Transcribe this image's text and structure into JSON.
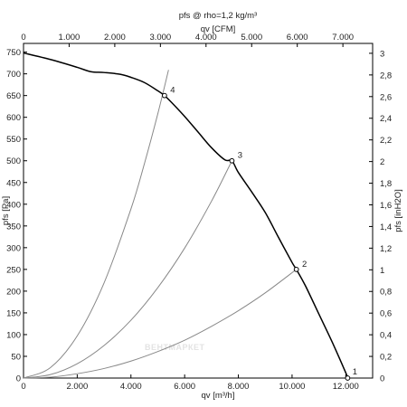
{
  "chart_data": {
    "type": "line",
    "title": "pfs @ rho=1,2 kg/m³",
    "top_axis_label": "qv [CFM]",
    "xlabel": "qv [m³/h]",
    "ylabel": "pfs [Pa]",
    "right_axis_label": "pfs [inH2O]",
    "watermark": "ВЕНТМАРКЕТ",
    "grid": false,
    "xlim": [
      0,
      13000
    ],
    "ylim": [
      0,
      770
    ],
    "x_ticks": [
      0,
      2000,
      4000,
      6000,
      8000,
      10000,
      12000
    ],
    "x_tick_labels": [
      "0",
      "2.000",
      "4.000",
      "6.000",
      "8.000",
      "10.000",
      "12.000"
    ],
    "y_ticks": [
      0,
      50,
      100,
      150,
      200,
      250,
      300,
      350,
      400,
      450,
      500,
      550,
      600,
      650,
      700,
      750
    ],
    "y_tick_labels": [
      "0",
      "50",
      "100",
      "150",
      "200",
      "250",
      "300",
      "350",
      "400",
      "450",
      "500",
      "550",
      "600",
      "650",
      "700",
      "750"
    ],
    "top_ticks_cfm": [
      0,
      1000,
      2000,
      3000,
      4000,
      5000,
      6000,
      7000
    ],
    "top_tick_labels": [
      "0",
      "1.000",
      "2.000",
      "3.000",
      "4.000",
      "5.000",
      "6.000",
      "7.000"
    ],
    "right_ticks_inh2o": [
      0,
      0.2,
      0.4,
      0.6,
      0.8,
      1.0,
      1.2,
      1.4,
      1.6,
      1.8,
      2.0,
      2.2,
      2.4,
      2.6,
      2.8,
      3.0
    ],
    "right_tick_labels": [
      "0",
      "0,2",
      "0,4",
      "0,6",
      "0,8",
      "1",
      "1,2",
      "1,4",
      "1,6",
      "1,8",
      "2",
      "2,2",
      "2,4",
      "2,6",
      "2,8",
      "3"
    ],
    "series": [
      {
        "role": "fan-curve",
        "color": "#000000",
        "x": [
          0,
          1000,
          2000,
          2500,
          3000,
          3600,
          4000,
          4500,
          5000,
          5250,
          5500,
          6000,
          6500,
          7000,
          7500,
          7760,
          8000,
          8500,
          9000,
          9500,
          10000,
          10160,
          10500,
          11000,
          11500,
          12000,
          12070
        ],
        "y": [
          748,
          733,
          715,
          705,
          703,
          699,
          692,
          680,
          661,
          650,
          635,
          602,
          566,
          530,
          502,
          500,
          473,
          428,
          381,
          323,
          266,
          250,
          212,
          147,
          82,
          12,
          0
        ]
      },
      {
        "role": "system-curve",
        "label": "4",
        "color": "#888888",
        "x": [
          0,
          1000,
          2000,
          3000,
          4000,
          4500,
          5000,
          5400
        ],
        "y": [
          0,
          24,
          97,
          219,
          389,
          493,
          608,
          709
        ]
      },
      {
        "role": "system-curve",
        "label": "3",
        "color": "#888888",
        "x": [
          0,
          1000,
          2000,
          3000,
          4000,
          5000,
          6000,
          7000,
          7760
        ],
        "y": [
          0,
          8,
          33,
          75,
          133,
          208,
          299,
          407,
          500
        ]
      },
      {
        "role": "system-curve",
        "label": "2",
        "color": "#888888",
        "x": [
          0,
          1000,
          2000,
          3000,
          4000,
          5000,
          6000,
          7000,
          8000,
          9000,
          10160
        ],
        "y": [
          0,
          2,
          10,
          22,
          39,
          61,
          87,
          119,
          155,
          196,
          250
        ]
      }
    ],
    "operating_points": [
      {
        "label": "4",
        "x": 5250,
        "y": 650
      },
      {
        "label": "3",
        "x": 7760,
        "y": 500
      },
      {
        "label": "2",
        "x": 10160,
        "y": 250
      },
      {
        "label": "1",
        "x": 12070,
        "y": 0
      }
    ]
  }
}
